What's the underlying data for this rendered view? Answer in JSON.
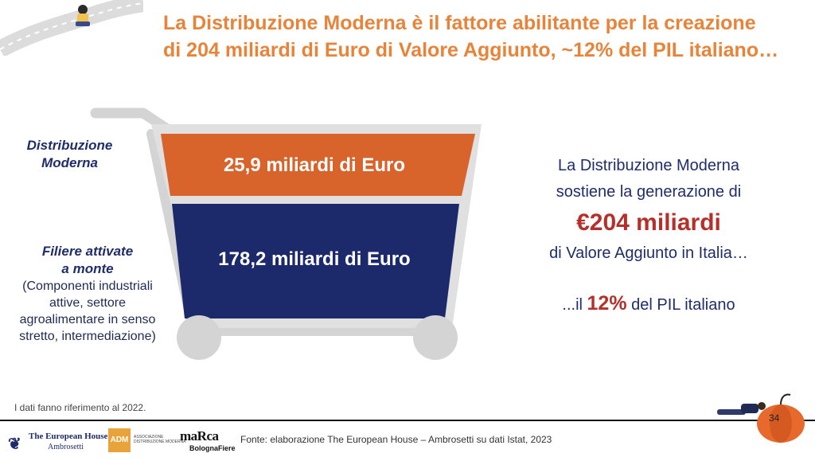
{
  "title": {
    "line1": "La Distribuzione Moderna è il fattore abilitante per la creazione",
    "line2": "di 204 miliardi di Euro di Valore Aggiunto, ~12% del PIL italiano…"
  },
  "left": {
    "dm_label": "Distribuzione Moderna",
    "filiere_label_1": "Filiere attivate",
    "filiere_label_2": "a monte",
    "filiere_desc_1": "(Componenti industriali",
    "filiere_desc_2": "attive, settore",
    "filiere_desc_3": "agroalimentare in senso",
    "filiere_desc_4": "stretto, intermediazione)"
  },
  "cart": {
    "top_segment_label": "25,9 miliardi di Euro",
    "bottom_segment_label": "178,2 miliardi di Euro",
    "top_color": "#d9642b",
    "bottom_color": "#1c2a6b",
    "frame_color": "#d4d4d4"
  },
  "right": {
    "line1": "La Distribuzione Moderna",
    "line2": "sostiene la generazione di",
    "big": "€204 miliardi",
    "line3": "di Valore Aggiunto in Italia…",
    "pil_prefix": "...il ",
    "pil_value": "12%",
    "pil_suffix": " del PIL italiano"
  },
  "footer": {
    "note": "I dati fanno riferimento al 2022.",
    "fonte": "Fonte: elaborazione The European House – Ambrosetti su dati Istat, 2023",
    "page_number": "34",
    "logo_teh_1": "The European House",
    "logo_teh_2": "Ambrosetti",
    "logo_adm": "ADM",
    "logo_adm_text_1": "ASSOCIAZIONE",
    "logo_adm_text_2": "DISTRIBUZIONE MODERNA",
    "logo_marca": "maRca",
    "logo_marca_by": "BolognaFiere"
  },
  "colors": {
    "title": "#e8843a",
    "navy": "#1f2d6b",
    "accent_red": "#b5302a"
  }
}
